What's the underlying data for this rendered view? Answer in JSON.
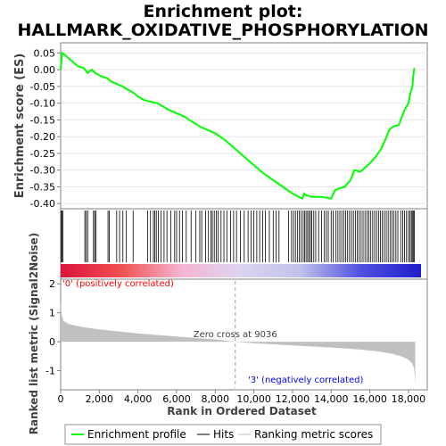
{
  "chart_data": {
    "type": "line",
    "title": "Enrichment plot:\nHALLMARK_OXIDATIVE_PHOSPHORYLATION",
    "title_lines": [
      "Enrichment plot:",
      "HALLMARK_OXIDATIVE_PHOSPHORYLATION"
    ],
    "es_panel": {
      "ylabel": "Enrichment score (ES)",
      "ylim": [
        -0.41,
        0.075
      ],
      "yticks": [
        0.05,
        0.0,
        -0.05,
        -0.1,
        -0.15,
        -0.2,
        -0.25,
        -0.3,
        -0.35,
        -0.4
      ],
      "ytick_labels": [
        "0.05",
        "0.00",
        "-0.05",
        "-0.10",
        "-0.15",
        "-0.20",
        "-0.25",
        "-0.30",
        "-0.35",
        "-0.40"
      ],
      "grid": true,
      "line_color": "#00ff00",
      "series": [
        {
          "name": "Enrichment profile",
          "x": [
            0,
            80,
            200,
            500,
            900,
            1200,
            1400,
            1600,
            1800,
            2100,
            2400,
            2600,
            2800,
            3000,
            3200,
            3500,
            3800,
            4000,
            4300,
            4600,
            5000,
            5300,
            5600,
            6000,
            6400,
            6800,
            7200,
            7600,
            8000,
            8500,
            9000,
            9500,
            10000,
            10500,
            11000,
            11500,
            12000,
            12500,
            12600,
            12700,
            13000,
            13500,
            14000,
            14200,
            14400,
            14700,
            15000,
            15200,
            15500,
            15800,
            16000,
            16300,
            16600,
            16800,
            17000,
            17200,
            17500,
            17800,
            18000,
            18100,
            18200,
            18250,
            18300
          ],
          "y": [
            0.0,
            0.05,
            0.045,
            0.03,
            0.01,
            0.005,
            -0.01,
            0.0,
            -0.01,
            -0.02,
            -0.025,
            -0.035,
            -0.04,
            -0.045,
            -0.05,
            -0.06,
            -0.07,
            -0.08,
            -0.09,
            -0.095,
            -0.1,
            -0.11,
            -0.12,
            -0.13,
            -0.14,
            -0.155,
            -0.17,
            -0.18,
            -0.19,
            -0.21,
            -0.235,
            -0.26,
            -0.285,
            -0.31,
            -0.33,
            -0.35,
            -0.37,
            -0.385,
            -0.37,
            -0.375,
            -0.38,
            -0.38,
            -0.385,
            -0.36,
            -0.355,
            -0.35,
            -0.33,
            -0.3,
            -0.305,
            -0.29,
            -0.28,
            -0.26,
            -0.235,
            -0.21,
            -0.18,
            -0.17,
            -0.165,
            -0.12,
            -0.1,
            -0.07,
            -0.05,
            -0.02,
            0.005
          ]
        }
      ]
    },
    "hits_panel": {
      "hit_positions": [
        30,
        60,
        120,
        1250,
        1320,
        1400,
        1700,
        1760,
        1820,
        2450,
        2520,
        2900,
        3050,
        3220,
        3400,
        3750,
        4500,
        4650,
        4800,
        4870,
        4950,
        5050,
        5200,
        5350,
        5500,
        5700,
        5900,
        6000,
        6150,
        6300,
        6500,
        6750,
        7000,
        7200,
        7300,
        7500,
        7650,
        7780,
        7850,
        7950,
        8050,
        8150,
        8300,
        8450,
        8600,
        8800,
        8950,
        9100,
        9300,
        9500,
        9700,
        9850,
        10000,
        10150,
        10300,
        10450,
        10600,
        10800,
        11000,
        11150,
        11300,
        11800,
        11950,
        12050,
        12150,
        12250,
        12350,
        12450,
        12550,
        12620,
        12700,
        12780,
        12850,
        12930,
        13000,
        13100,
        13200,
        13350,
        13500,
        13650,
        13750,
        13850,
        14000,
        14100,
        14250,
        14350,
        14450,
        14550,
        14650,
        14750,
        14850,
        14950,
        15050,
        15150,
        15250,
        15350,
        15450,
        15550,
        15650,
        15750,
        15850,
        15950,
        16050,
        16150,
        16250,
        16350,
        16450,
        16550,
        16650,
        16750,
        16850,
        16950,
        17050,
        17150,
        17250,
        17350,
        17450,
        17600,
        17700,
        17800,
        17900,
        18000,
        18080,
        18150,
        18200,
        18250,
        18300
      ],
      "color_bar": {
        "stops": [
          "#dc143c",
          "#f05050",
          "#f5b4d2",
          "#ddd5f0",
          "#c0c0ec",
          "#5050e0",
          "#1e1ecc"
        ]
      }
    },
    "metric_panel": {
      "ylabel": "Ranked list metric (Signal2Noise)",
      "xlabel": "Rank in Ordered Dataset",
      "ylim": [
        -1.6,
        2.1
      ],
      "yticks": [
        2,
        1,
        0,
        -1
      ],
      "ytick_labels": [
        "2",
        "1",
        "0",
        "-1"
      ],
      "xlim": [
        0,
        18650
      ],
      "xticks": [
        0,
        2000,
        4000,
        6000,
        8000,
        10000,
        12000,
        14000,
        16000,
        18000
      ],
      "xtick_labels": [
        "0",
        "2,000",
        "4,000",
        "6,000",
        "8,000",
        "10,000",
        "12,000",
        "14,000",
        "16,000",
        "18,000"
      ],
      "fill_color": "#c0c0c0",
      "curve": {
        "x": [
          0,
          50,
          150,
          400,
          800,
          1500,
          2500,
          4000,
          6000,
          8000,
          9036,
          10000,
          12000,
          14000,
          15500,
          16500,
          17200,
          17700,
          18000,
          18200,
          18300,
          18350
        ],
        "y": [
          1.4,
          0.95,
          0.72,
          0.62,
          0.55,
          0.47,
          0.39,
          0.29,
          0.18,
          0.08,
          0.0,
          -0.05,
          -0.13,
          -0.2,
          -0.27,
          -0.34,
          -0.42,
          -0.52,
          -0.62,
          -0.75,
          -0.95,
          -1.5
        ]
      },
      "zero_cross_label": "Zero cross at 9036",
      "zero_cross": 9036,
      "pos_label": "'0' (positively correlated)",
      "neg_label": "'3' (negatively correlated)",
      "pos_color": "#ff0000",
      "neg_color": "#0000ff"
    },
    "legend": {
      "placement": "bottom",
      "items": [
        {
          "label": "Enrichment profile",
          "color": "#00ff00"
        },
        {
          "label": "Hits",
          "color": "#000000"
        },
        {
          "label": "Ranking metric scores",
          "color": "#c0c0c0"
        }
      ]
    }
  }
}
